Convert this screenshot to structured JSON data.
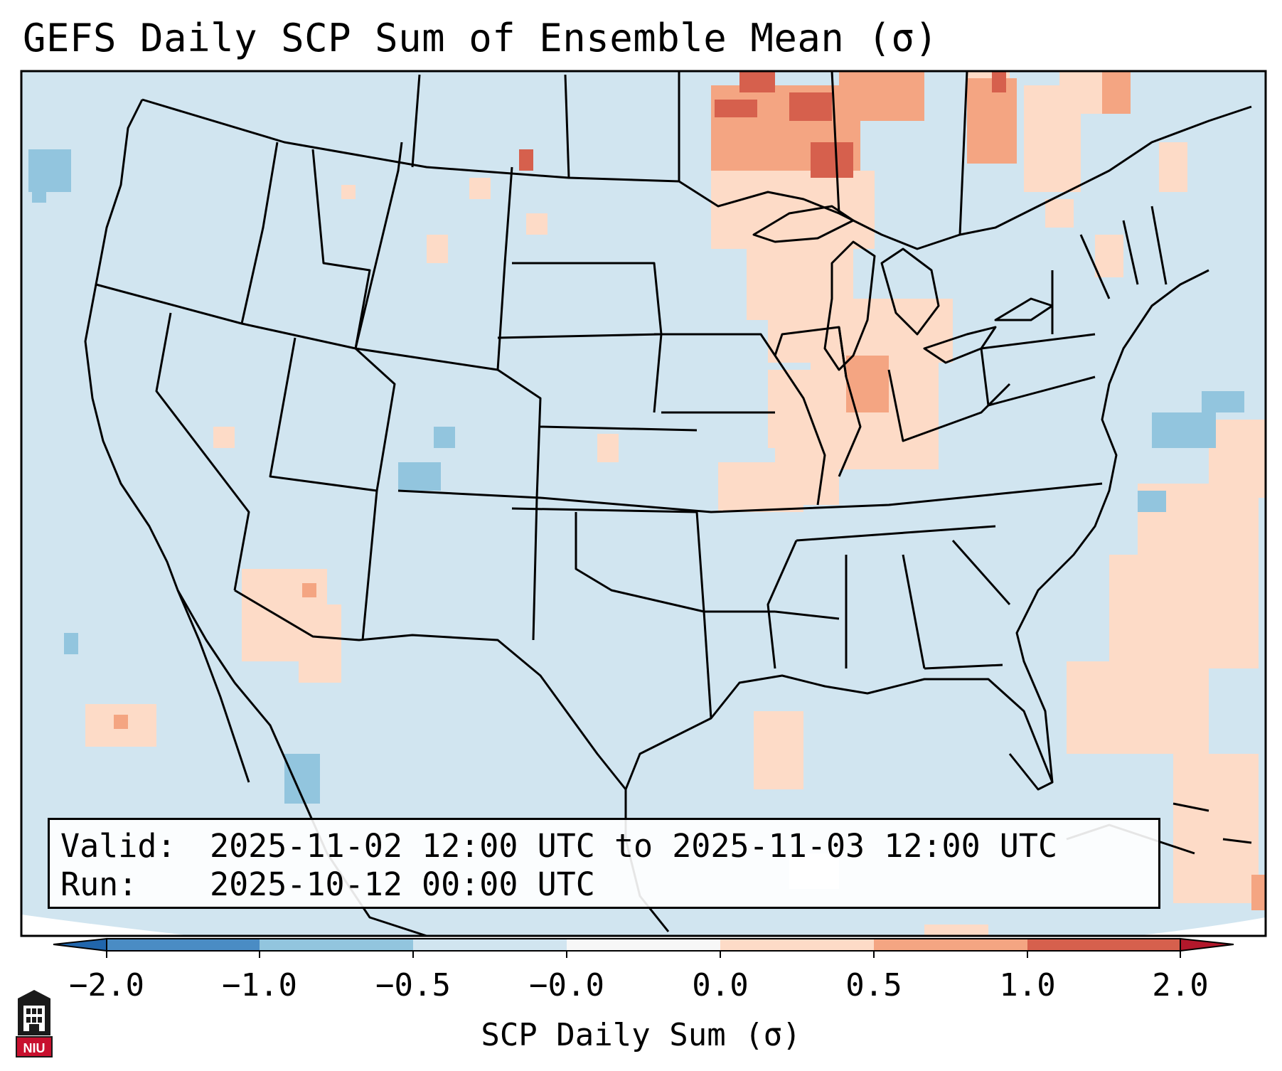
{
  "title": "GEFS Daily SCP Sum of Ensemble Mean (σ)",
  "info": {
    "valid_label": "Valid:",
    "valid_value": "2025-11-02 12:00 UTC to 2025-11-03 12:00 UTC",
    "run_label": "Run:",
    "run_value": "2025-10-12 00:00 UTC"
  },
  "colorbar": {
    "label": "SCP Daily Sum (σ)",
    "ticks": [
      "−2.0",
      "−1.0",
      "−0.5",
      "−0.0",
      "0.0",
      "0.5",
      "1.0",
      "2.0"
    ],
    "bins": [
      {
        "range": "-2.0 to -1.0",
        "color": "#4a8cc4"
      },
      {
        "range": "-1.0 to -0.5",
        "color": "#92c5de"
      },
      {
        "range": "-0.5 to -0.0",
        "color": "#d1e5f0"
      },
      {
        "range": "-0.0 to 0.0",
        "color": "#f7f7f7"
      },
      {
        "range": "0.0 to 0.5",
        "color": "#fddbc7"
      },
      {
        "range": "0.5 to 1.0",
        "color": "#f4a582"
      },
      {
        "range": "1.0 to 2.0",
        "color": "#d6604d"
      }
    ],
    "under_color": "#2166ac",
    "over_color": "#b2182b"
  },
  "map": {
    "background_color": "#d1e5f0",
    "outside_color": "#ffffff",
    "anomaly_regions": [
      {
        "area": "Upper Great Lakes / Ontario",
        "level": "1.0 to 2.0"
      },
      {
        "area": "Michigan / Indiana / Illinois",
        "level": "0.0 to 1.0"
      },
      {
        "area": "Western Atlantic",
        "level": "0.0 to 0.5"
      },
      {
        "area": "Colorado",
        "level": "-1.0 to -0.5"
      },
      {
        "area": "Off Carolina coast",
        "level": "-1.0 to -0.5"
      },
      {
        "area": "Northern Mexico",
        "level": "-1.0 to -0.5"
      }
    ]
  },
  "logo": {
    "text": "NIU"
  }
}
